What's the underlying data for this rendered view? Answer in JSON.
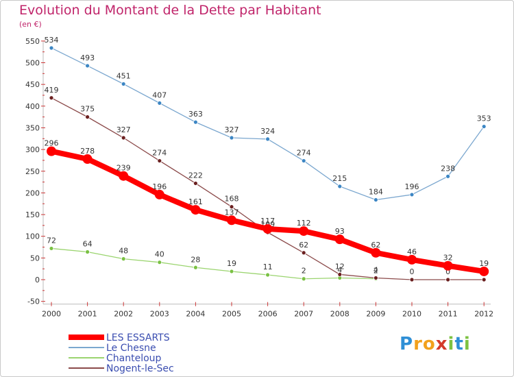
{
  "title": "Evolution du Montant de la Dette par Habitant",
  "subtitle": "(en €)",
  "logo": {
    "letters": [
      "P",
      "r",
      "o",
      "x",
      "i",
      "t",
      "i"
    ],
    "colors": [
      "#2e8fd6",
      "#f2a11d",
      "#f2a11d",
      "#d43a2b",
      "#7dc242",
      "#2e8fd6",
      "#7dc242"
    ]
  },
  "chart_data": {
    "type": "line",
    "x": [
      "2000",
      "2001",
      "2002",
      "2003",
      "2004",
      "2005",
      "2006",
      "2007",
      "2008",
      "2009",
      "2010",
      "2011",
      "2012"
    ],
    "ylim": [
      -50,
      550
    ],
    "yticks": [
      -50,
      0,
      50,
      100,
      150,
      200,
      250,
      300,
      350,
      400,
      450,
      500,
      550
    ],
    "grid": false,
    "legend": "bottom-left",
    "series": [
      {
        "name": "Le Chesne",
        "color": "#7ba7cf",
        "marker": "#3c86c4",
        "values": [
          534,
          493,
          451,
          407,
          363,
          327,
          324,
          274,
          215,
          184,
          196,
          238,
          353
        ],
        "labels": [
          "534",
          "493",
          "451",
          "407",
          "363",
          "327",
          "324",
          "274",
          "215",
          "184",
          "196",
          "238",
          "353"
        ]
      },
      {
        "name": "Chanteloup",
        "color": "#9ad46e",
        "marker": "#7ac143",
        "values": [
          72,
          64,
          48,
          40,
          28,
          19,
          11,
          2,
          4,
          2,
          null,
          null,
          null
        ],
        "labels": [
          "72",
          "64",
          "48",
          "40",
          "28",
          "19",
          "11",
          "2",
          "4",
          "2",
          "",
          "",
          ""
        ]
      },
      {
        "name": "Nogent-le-Sec",
        "color": "#8b4a4a",
        "marker": "#6b2020",
        "values": [
          419,
          375,
          327,
          274,
          222,
          168,
          109,
          62,
          12,
          4,
          0,
          0,
          0
        ],
        "labels": [
          "419",
          "375",
          "327",
          "274",
          "222",
          "168",
          "109",
          "62",
          "12",
          "4",
          "0",
          "0",
          "0"
        ]
      },
      {
        "name": "LES ESSARTS",
        "color": "#ff0000",
        "marker": "#ff0000",
        "values": [
          296,
          278,
          239,
          196,
          161,
          137,
          117,
          112,
          93,
          62,
          46,
          32,
          19
        ],
        "labels": [
          "296",
          "278",
          "239",
          "196",
          "161",
          "137",
          "117",
          "112",
          "93",
          "62",
          "46",
          "32",
          "19"
        ]
      }
    ],
    "legend_items": [
      {
        "name": "LES ESSARTS",
        "color": "#ff0000"
      },
      {
        "name": "Le Chesne",
        "color": "#7ba7cf"
      },
      {
        "name": "Chanteloup",
        "color": "#9ad46e"
      },
      {
        "name": "Nogent-le-Sec",
        "color": "#8b4a4a"
      }
    ]
  }
}
